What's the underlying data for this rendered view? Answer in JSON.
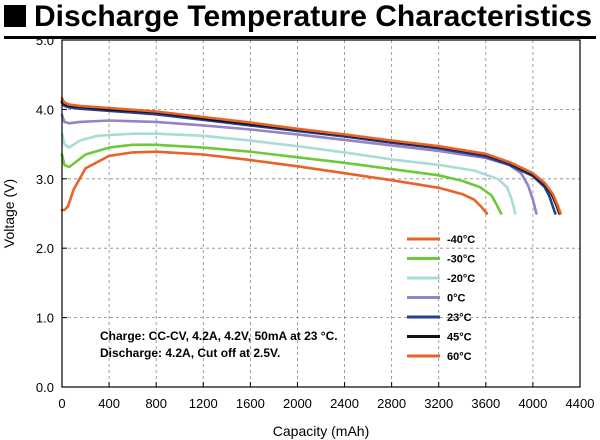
{
  "title": "Discharge Temperature Characteristics",
  "chart_data": {
    "type": "line",
    "xlabel": "Capacity (mAh)",
    "ylabel": "Voltage (V)",
    "xlim": [
      0,
      4400
    ],
    "ylim": [
      0.0,
      5.0
    ],
    "x_ticks": [
      "0",
      "400",
      "800",
      "1200",
      "1600",
      "2000",
      "2400",
      "2800",
      "3200",
      "3600",
      "4000",
      "4400"
    ],
    "y_ticks": [
      "0.0",
      "1.0",
      "2.0",
      "3.0",
      "4.0",
      "5.0"
    ],
    "grid": true,
    "legend_position": "center-right",
    "annotations": [
      "Charge: CC-CV, 4.2A, 4.2V, 50mA at 23 °C.",
      "Discharge: 4.2A, Cut off at 2.5V."
    ],
    "series": [
      {
        "name": "-40°C",
        "color": "#e8632a",
        "x": [
          0,
          20,
          50,
          100,
          200,
          400,
          600,
          800,
          1200,
          1600,
          2000,
          2400,
          2800,
          3200,
          3400,
          3500,
          3560,
          3600,
          3610
        ],
        "y": [
          2.55,
          2.55,
          2.6,
          2.85,
          3.15,
          3.33,
          3.38,
          3.39,
          3.35,
          3.27,
          3.18,
          3.08,
          2.98,
          2.87,
          2.78,
          2.7,
          2.6,
          2.52,
          2.5
        ]
      },
      {
        "name": "-30°C",
        "color": "#6dc93a",
        "x": [
          0,
          20,
          60,
          100,
          200,
          400,
          600,
          800,
          1200,
          1600,
          2000,
          2400,
          2800,
          3200,
          3400,
          3550,
          3650,
          3700,
          3730
        ],
        "y": [
          3.35,
          3.2,
          3.17,
          3.22,
          3.35,
          3.45,
          3.49,
          3.49,
          3.45,
          3.39,
          3.31,
          3.23,
          3.14,
          3.05,
          2.97,
          2.88,
          2.76,
          2.6,
          2.5
        ]
      },
      {
        "name": "-20°C",
        "color": "#a8ddd7",
        "x": [
          0,
          20,
          60,
          150,
          300,
          600,
          800,
          1200,
          1600,
          2000,
          2400,
          2800,
          3200,
          3500,
          3700,
          3780,
          3820,
          3850
        ],
        "y": [
          3.65,
          3.5,
          3.45,
          3.55,
          3.62,
          3.65,
          3.65,
          3.62,
          3.55,
          3.47,
          3.38,
          3.28,
          3.2,
          3.12,
          3.0,
          2.88,
          2.7,
          2.5
        ]
      },
      {
        "name": "0°C",
        "color": "#9683c4",
        "x": [
          0,
          20,
          60,
          150,
          400,
          800,
          1200,
          1600,
          2000,
          2400,
          2800,
          3200,
          3600,
          3800,
          3900,
          3960,
          4000,
          4030
        ],
        "y": [
          3.92,
          3.82,
          3.8,
          3.82,
          3.84,
          3.82,
          3.77,
          3.71,
          3.64,
          3.56,
          3.48,
          3.4,
          3.3,
          3.2,
          3.08,
          2.9,
          2.7,
          2.5
        ]
      },
      {
        "name": "23°C",
        "color": "#263f8e",
        "x": [
          0,
          20,
          60,
          150,
          400,
          800,
          1200,
          1600,
          2000,
          2400,
          2800,
          3200,
          3600,
          3800,
          4000,
          4100,
          4140,
          4170,
          4190
        ],
        "y": [
          4.1,
          4.05,
          4.03,
          4.01,
          3.98,
          3.93,
          3.85,
          3.77,
          3.69,
          3.61,
          3.52,
          3.44,
          3.32,
          3.2,
          3.04,
          2.88,
          2.75,
          2.6,
          2.5
        ]
      },
      {
        "name": "45°C",
        "color": "#111111",
        "x": [
          0,
          20,
          60,
          150,
          400,
          800,
          1200,
          1600,
          2000,
          2400,
          2800,
          3200,
          3600,
          3800,
          4000,
          4100,
          4160,
          4200,
          4225
        ],
        "y": [
          4.12,
          4.08,
          4.05,
          4.04,
          4.0,
          3.96,
          3.87,
          3.79,
          3.71,
          3.63,
          3.54,
          3.46,
          3.35,
          3.23,
          3.06,
          2.92,
          2.78,
          2.62,
          2.5
        ]
      },
      {
        "name": "60°C",
        "color": "#e8632a",
        "x": [
          0,
          20,
          60,
          150,
          400,
          800,
          1200,
          1600,
          2000,
          2400,
          2800,
          3200,
          3600,
          3800,
          4000,
          4100,
          4170,
          4210,
          4235
        ],
        "y": [
          4.16,
          4.1,
          4.07,
          4.05,
          4.02,
          3.97,
          3.89,
          3.81,
          3.72,
          3.64,
          3.55,
          3.47,
          3.36,
          3.24,
          3.08,
          2.94,
          2.78,
          2.62,
          2.5
        ]
      }
    ]
  }
}
